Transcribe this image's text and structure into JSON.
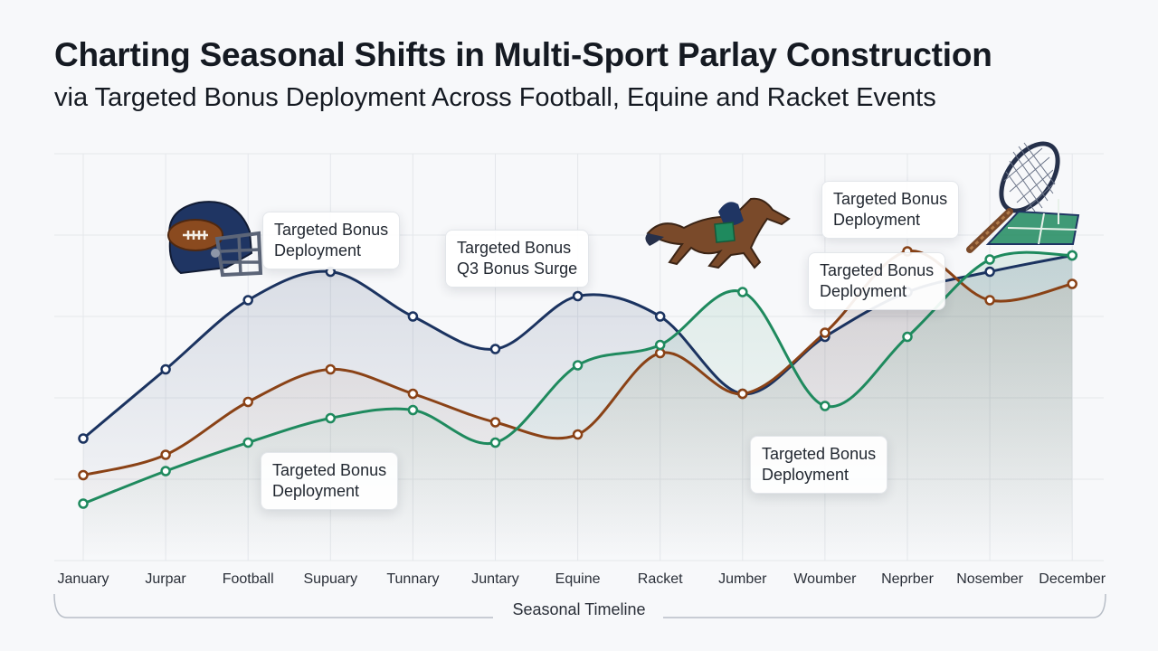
{
  "title": "Charting Seasonal Shifts in Multi-Sport Parlay Construction",
  "subtitle": "via Targeted Bonus Deployment Across Football, Equine and Racket Events",
  "chart_data": {
    "type": "line",
    "categories": [
      "January",
      "Jurpar",
      "Football",
      "Supuary",
      "Tunnary",
      "Juntary",
      "Equine",
      "Racket",
      "Jumber",
      "Woumber",
      "Neprber",
      "Nosember",
      "December"
    ],
    "xlabel": "Seasonal Timeline",
    "ylabel": "",
    "ylim": [
      0,
      100
    ],
    "grid": true,
    "series": [
      {
        "color": "#1b3360",
        "values": [
          30,
          47,
          64,
          71,
          60,
          52,
          65,
          60,
          41,
          55,
          66,
          71,
          75
        ]
      },
      {
        "color": "#8a4216",
        "values": [
          21,
          26,
          39,
          47,
          41,
          34,
          31,
          51,
          41,
          56,
          76,
          64,
          68
        ]
      },
      {
        "color": "#1f8a5e",
        "values": [
          14,
          22,
          29,
          35,
          37,
          29,
          48,
          53,
          66,
          38,
          55,
          74,
          75
        ]
      }
    ],
    "annotations": [
      {
        "lines": [
          "Targeted Bonus",
          "Deployment"
        ]
      },
      {
        "lines": [
          "Targeted Bonus",
          "Q3 Bonus Surge"
        ]
      },
      {
        "lines": [
          "Targeted Bonus",
          "Deployment"
        ]
      },
      {
        "lines": [
          "Targeted Bonus",
          "Deployment"
        ]
      },
      {
        "lines": [
          "Targeted Bonus",
          "Deployment"
        ]
      },
      {
        "lines": [
          "Targeted Bonus",
          "Deployment"
        ]
      }
    ]
  },
  "icons": [
    "football-helmet-icon",
    "racehorse-icon",
    "tennis-racket-icon"
  ]
}
